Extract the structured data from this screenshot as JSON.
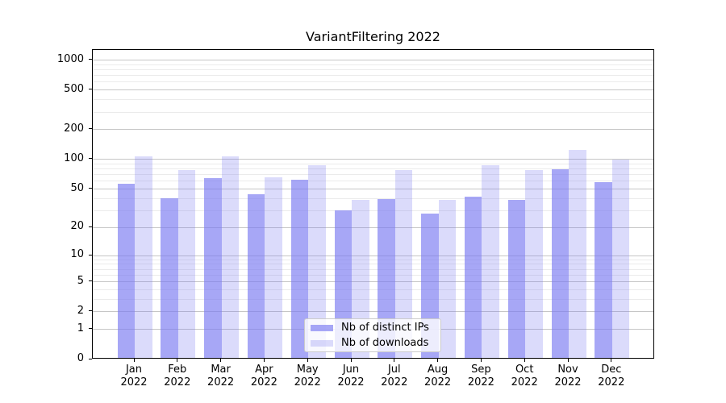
{
  "title": "VariantFiltering 2022",
  "legend": {
    "items": [
      {
        "label": "Nb of distinct IPs",
        "series_key": "ips"
      },
      {
        "label": "Nb of downloads",
        "series_key": "downloads"
      }
    ]
  },
  "colors": {
    "bar_base": "#7a7af2",
    "ips_fill": "rgba(122,122,242,0.66)",
    "downloads_fill": "rgba(122,122,242,0.27)",
    "grid_major": "#c6c6c6",
    "grid_minor": "#ebebeb",
    "axis": "#000000",
    "legend_border": "#cccccc"
  },
  "chart_data": {
    "type": "bar",
    "title": "VariantFiltering 2022",
    "categories": [
      "Jan 2022",
      "Feb 2022",
      "Mar 2022",
      "Apr 2022",
      "May 2022",
      "Jun 2022",
      "Jul 2022",
      "Aug 2022",
      "Sep 2022",
      "Oct 2022",
      "Nov 2022",
      "Dec 2022"
    ],
    "series": [
      {
        "name": "Nb of distinct IPs",
        "values": [
          55,
          39,
          62,
          43,
          60,
          29,
          38,
          27,
          40,
          37,
          76,
          57
        ]
      },
      {
        "name": "Nb of downloads",
        "values": [
          103,
          75,
          104,
          64,
          85,
          37,
          75,
          37,
          85,
          75,
          120,
          96
        ]
      }
    ],
    "yscale": "log10(1+x)",
    "ylim": [
      0,
      1265
    ],
    "yticks": [
      0,
      1,
      2,
      5,
      10,
      20,
      50,
      100,
      200,
      500,
      1000
    ],
    "minor_gridlines": [
      3,
      4,
      6,
      7,
      8,
      9,
      30,
      40,
      60,
      70,
      80,
      90,
      300,
      400,
      600,
      700,
      800,
      900
    ],
    "grid": "horizontal",
    "legend_position": "lower center",
    "xlabel": "",
    "ylabel": ""
  }
}
